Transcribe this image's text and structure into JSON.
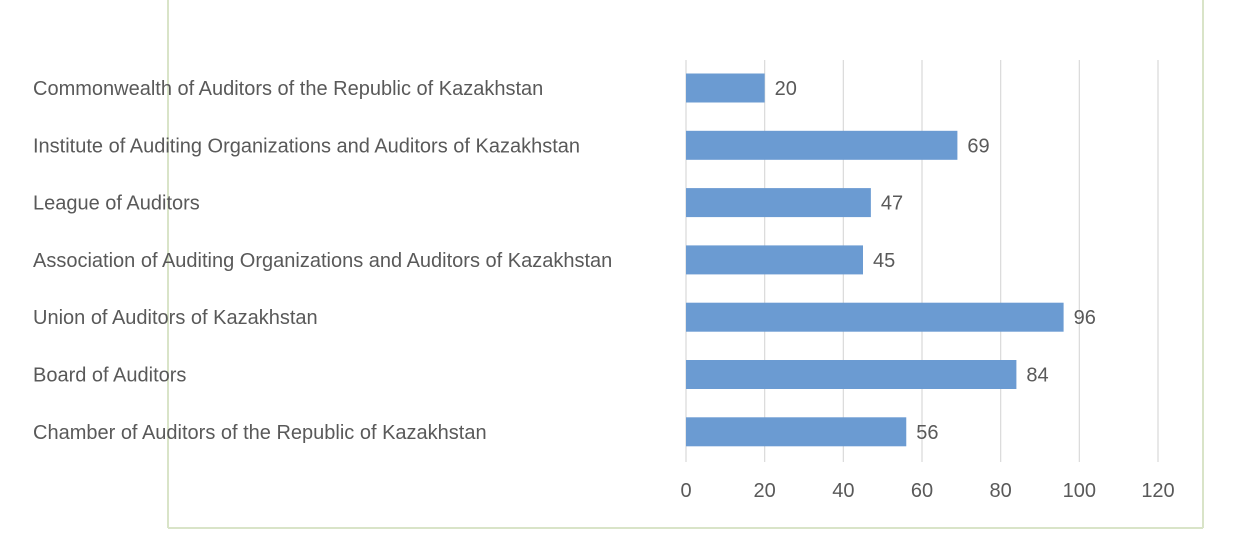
{
  "chart_data": {
    "type": "bar",
    "orientation": "horizontal",
    "categories": [
      "Commonwealth of Auditors of the Republic of Kazakhstan",
      "Institute of Auditing Organizations and Auditors of Kazakhstan",
      "League of Auditors",
      "Association of Auditing Organizations and Auditors of Kazakhstan",
      "Union of Auditors of Kazakhstan",
      "Board of Auditors",
      "Chamber of Auditors of the Republic of Kazakhstan"
    ],
    "values": [
      20,
      69,
      47,
      45,
      96,
      84,
      56
    ],
    "xlim": [
      0,
      120
    ],
    "x_ticks": [
      0,
      20,
      40,
      60,
      80,
      100,
      120
    ],
    "grid": true,
    "legend": "none",
    "data_labels": true,
    "title": "",
    "xlabel": "",
    "ylabel": ""
  },
  "colors": {
    "bar": "#6b9bd2",
    "gridline": "#d9d9d9",
    "frame": "#d9e4c8",
    "text": "#595959"
  }
}
